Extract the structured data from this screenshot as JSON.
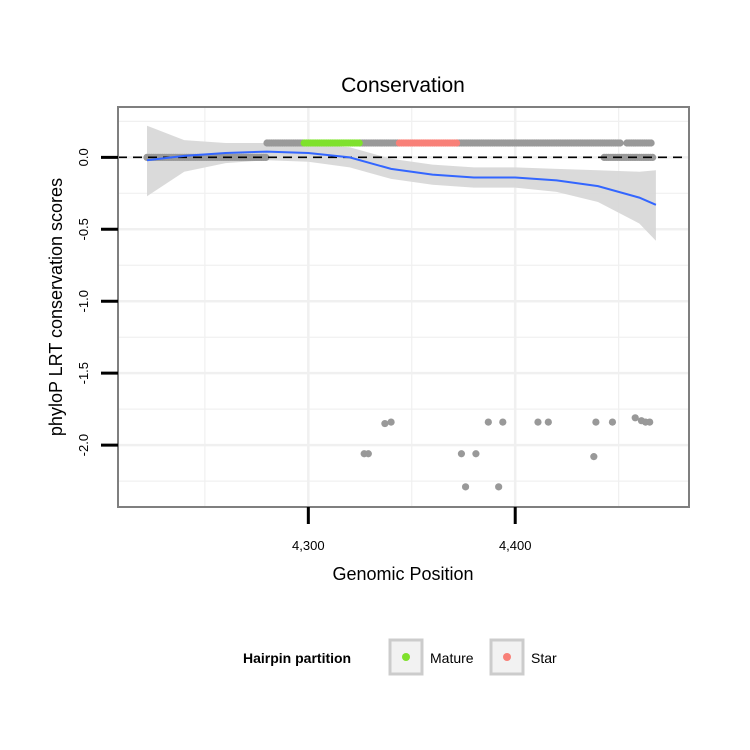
{
  "colors": {
    "other": "#999999",
    "mature": "#7fe12c",
    "star": "#f88078",
    "smooth_line": "#3366ff",
    "ribbon": "#d6d6d6",
    "grid": "#f0f0f0",
    "panel_border": "#7f7f7f"
  },
  "chart_data": {
    "type": "scatter",
    "title": "Conservation",
    "xlabel": "Genomic Position",
    "ylabel": "phyloP LRT conservation scores",
    "xlim": [
      4208,
      4484
    ],
    "ylim": [
      -2.43,
      0.35
    ],
    "x_ticks": [
      4300,
      4400
    ],
    "x_tick_labels": [
      "4,300",
      "4,400"
    ],
    "y_ticks": [
      0.0,
      -0.5,
      -1.0,
      -1.5,
      -2.0
    ],
    "y_tick_labels": [
      "0.0",
      "-0.5",
      "-1.0",
      "-1.5",
      "-2.0"
    ],
    "reference_line": {
      "y": 0,
      "style": "dashed"
    },
    "grid": true,
    "legend": {
      "title": "Hairpin partition",
      "position": "bottom",
      "entries": [
        {
          "label": "Mature",
          "color_key": "mature"
        },
        {
          "label": "Star",
          "color_key": "star"
        }
      ]
    },
    "band_points": {
      "other": [
        {
          "x_start": 4222,
          "x_end": 4280,
          "y": 0.0
        },
        {
          "x_start": 4280,
          "x_end": 4298,
          "y": 0.1
        },
        {
          "x_start": 4325,
          "x_end": 4344,
          "y": 0.1
        },
        {
          "x_start": 4372,
          "x_end": 4451,
          "y": 0.1
        },
        {
          "x_start": 4454,
          "x_end": 4466,
          "y": 0.1
        },
        {
          "x_start": 4443,
          "x_end": 4467,
          "y": 0.0
        }
      ],
      "mature": [
        {
          "x_start": 4298,
          "x_end": 4325,
          "y": 0.1
        }
      ],
      "star": [
        {
          "x_start": 4344,
          "x_end": 4372,
          "y": 0.1
        }
      ]
    },
    "scattered_points": [
      {
        "x": 4327,
        "y": -2.06
      },
      {
        "x": 4329,
        "y": -2.06
      },
      {
        "x": 4337,
        "y": -1.85
      },
      {
        "x": 4340,
        "y": -1.84
      },
      {
        "x": 4374,
        "y": -2.06
      },
      {
        "x": 4376,
        "y": -2.29
      },
      {
        "x": 4381,
        "y": -2.06
      },
      {
        "x": 4387,
        "y": -1.84
      },
      {
        "x": 4392,
        "y": -2.29
      },
      {
        "x": 4394,
        "y": -1.84
      },
      {
        "x": 4411,
        "y": -1.84
      },
      {
        "x": 4416,
        "y": -1.84
      },
      {
        "x": 4438,
        "y": -2.08
      },
      {
        "x": 4439,
        "y": -1.84
      },
      {
        "x": 4447,
        "y": -1.84
      },
      {
        "x": 4458,
        "y": -1.81
      },
      {
        "x": 4461,
        "y": -1.83
      },
      {
        "x": 4463,
        "y": -1.84
      },
      {
        "x": 4465,
        "y": -1.84
      }
    ],
    "smooth": {
      "x": [
        4222,
        4240,
        4260,
        4280,
        4300,
        4320,
        4340,
        4360,
        4380,
        4400,
        4420,
        4440,
        4460,
        4468
      ],
      "y": [
        -0.02,
        0.01,
        0.03,
        0.04,
        0.03,
        0.0,
        -0.08,
        -0.12,
        -0.14,
        -0.14,
        -0.16,
        -0.2,
        -0.28,
        -0.33
      ],
      "ymin": [
        -0.27,
        -0.1,
        -0.04,
        -0.02,
        -0.03,
        -0.07,
        -0.15,
        -0.19,
        -0.21,
        -0.21,
        -0.24,
        -0.31,
        -0.46,
        -0.58
      ],
      "ymax": [
        0.22,
        0.12,
        0.1,
        0.1,
        0.09,
        0.07,
        -0.01,
        -0.05,
        -0.07,
        -0.07,
        -0.08,
        -0.09,
        -0.1,
        -0.09
      ]
    }
  }
}
